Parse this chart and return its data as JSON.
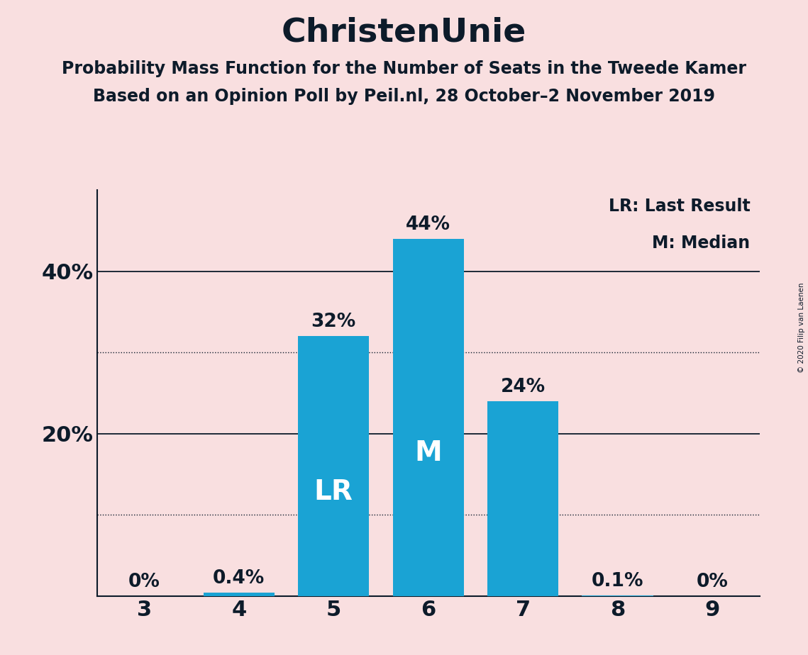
{
  "title": "ChristenUnie",
  "subtitle1": "Probability Mass Function for the Number of Seats in the Tweede Kamer",
  "subtitle2": "Based on an Opinion Poll by Peil.nl, 28 October–2 November 2019",
  "copyright": "© 2020 Filip van Laenen",
  "categories": [
    3,
    4,
    5,
    6,
    7,
    8,
    9
  ],
  "values": [
    0.0,
    0.4,
    32.0,
    44.0,
    24.0,
    0.1,
    0.0
  ],
  "bar_color": "#1aa3d4",
  "background_color": "#f9dfe0",
  "bar_labels": [
    "0%",
    "0.4%",
    "32%",
    "44%",
    "24%",
    "0.1%",
    "0%"
  ],
  "lr_bar": 5,
  "median_bar": 6,
  "label_lr": "LR",
  "label_median": "M",
  "legend_lr": "LR: Last Result",
  "legend_median": "M: Median",
  "solid_yticks": [
    20,
    40
  ],
  "dotted_yticks": [
    10,
    30
  ],
  "ylim": [
    0,
    50
  ],
  "title_fontsize": 34,
  "subtitle_fontsize": 17,
  "bar_label_fontsize": 19,
  "axis_label_fontsize": 22,
  "inner_label_fontsize": 28
}
